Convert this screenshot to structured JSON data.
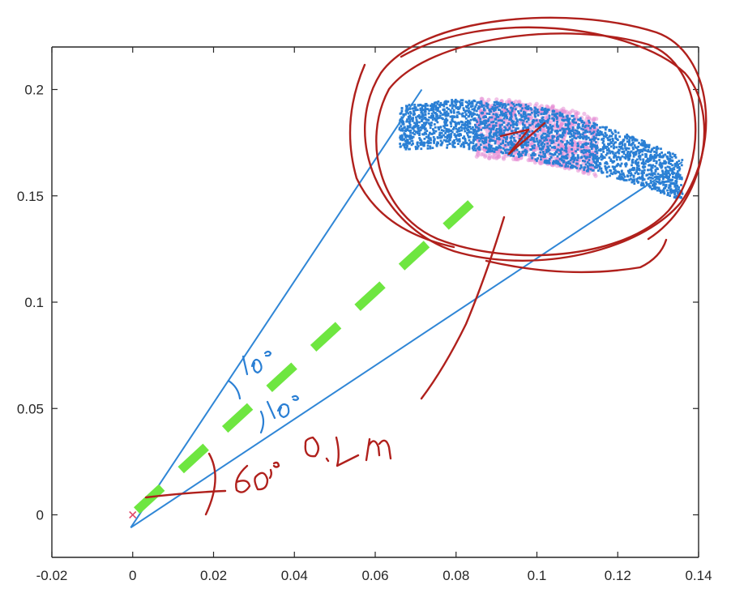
{
  "chart_data": {
    "type": "scatter",
    "xlim": [
      -0.02,
      0.14
    ],
    "ylim": [
      -0.02,
      0.22
    ],
    "xticks": [
      "-0.02",
      "0",
      "0.02",
      "0.04",
      "0.06",
      "0.08",
      "0.1",
      "0.12",
      "0.14"
    ],
    "yticks": [
      "0",
      "0.05",
      "0.1",
      "0.15",
      "0.2"
    ],
    "grid": false,
    "lines": [
      {
        "x": [
          -0.0005,
          0.0715
        ],
        "y": [
          -0.006,
          0.2
        ]
      },
      {
        "x": [
          -0.0005,
          0.136
        ],
        "y": [
          -0.006,
          0.166
        ]
      }
    ],
    "dashed_line": {
      "color": "#6ee640",
      "x": [
        0.001,
        0.088
      ],
      "y": [
        0.002,
        0.154
      ]
    },
    "scatter_band": {
      "color": "#2a7fd4",
      "x_range": [
        0.066,
        0.136
      ],
      "centerline": {
        "x": [
          0.066,
          0.08,
          0.095,
          0.11,
          0.125,
          0.136
        ],
        "y": [
          0.182,
          0.184,
          0.181,
          0.175,
          0.166,
          0.158
        ]
      },
      "half_width": 0.013
    },
    "highlight_band": {
      "color": "#e58fd6",
      "centerline": {
        "x": [
          0.085,
          0.095,
          0.105,
          0.115
        ],
        "y": [
          0.182,
          0.181,
          0.178,
          0.173
        ]
      },
      "half_width": 0.014
    },
    "origin_marker": {
      "x": 0,
      "y": 0,
      "color": "#e04a6a"
    }
  },
  "annotations": {
    "handwritten_1": "10°",
    "handwritten_2": "10°",
    "handwritten_3": "60°",
    "handwritten_4": "0.2m"
  },
  "colors": {
    "axis": "#262626",
    "beam": "#2f86d6",
    "ink_blue": "#2a7fd4",
    "ink_red": "#b0201c"
  }
}
